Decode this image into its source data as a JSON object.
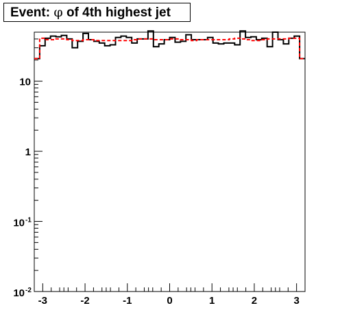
{
  "chart_data": {
    "type": "histogram",
    "title_prefix": "Event: ",
    "title_symbol": "φ",
    "title_suffix": " of 4th highest jet",
    "xlim": [
      -3.2,
      3.2
    ],
    "ylim": [
      0.01,
      50
    ],
    "yscale": "log",
    "grid": false,
    "legend": "none",
    "x_ticks": [
      {
        "value": -3,
        "label": "-3"
      },
      {
        "value": -2,
        "label": "-2"
      },
      {
        "value": -1,
        "label": "-1"
      },
      {
        "value": 0,
        "label": "0"
      },
      {
        "value": 1,
        "label": "1"
      },
      {
        "value": 2,
        "label": "2"
      },
      {
        "value": 3,
        "label": "3"
      }
    ],
    "y_ticks": [
      {
        "value": 10,
        "base": "10",
        "exp": ""
      },
      {
        "value": 1,
        "base": "1",
        "exp": ""
      },
      {
        "value": 0.1,
        "base": "10",
        "exp": "-1"
      },
      {
        "value": 0.01,
        "base": "10",
        "exp": "-2"
      }
    ],
    "bin_edges": [
      -3.2,
      -3.072,
      -2.944,
      -2.816,
      -2.688,
      -2.56,
      -2.432,
      -2.304,
      -2.176,
      -2.048,
      -1.92,
      -1.792,
      -1.664,
      -1.536,
      -1.408,
      -1.28,
      -1.152,
      -1.024,
      -0.896,
      -0.768,
      -0.64,
      -0.512,
      -0.384,
      -0.256,
      -0.128,
      0.0,
      0.128,
      0.256,
      0.384,
      0.512,
      0.64,
      0.768,
      0.896,
      1.024,
      1.152,
      1.28,
      1.408,
      1.536,
      1.664,
      1.792,
      1.92,
      2.048,
      2.176,
      2.304,
      2.432,
      2.56,
      2.688,
      2.816,
      2.944,
      3.072,
      3.2
    ],
    "series": [
      {
        "style": "solid",
        "color": "#000000",
        "values": [
          21,
          32,
          41,
          44,
          43,
          45,
          40,
          30,
          37,
          48,
          39,
          37,
          35,
          32,
          33,
          42,
          44,
          42,
          35,
          40,
          40,
          52,
          31,
          34,
          39,
          42,
          36,
          37,
          46,
          39,
          39,
          39,
          42,
          35,
          34,
          35,
          35,
          33,
          52,
          42,
          43,
          39,
          41,
          31,
          50,
          39,
          34,
          41,
          44,
          21
        ]
      },
      {
        "style": "dashed",
        "color": "#ff0000",
        "values": [
          21,
          41,
          39,
          39,
          40,
          40,
          39,
          38,
          38,
          39,
          39,
          38,
          38,
          38,
          38,
          38,
          38,
          38,
          39,
          40,
          40,
          40,
          39,
          39,
          39,
          40,
          40,
          39,
          39,
          38,
          39,
          39,
          39,
          39,
          39,
          39,
          40,
          41,
          40,
          39,
          38,
          38,
          39,
          40,
          40,
          40,
          40,
          41,
          41,
          21
        ]
      }
    ]
  }
}
